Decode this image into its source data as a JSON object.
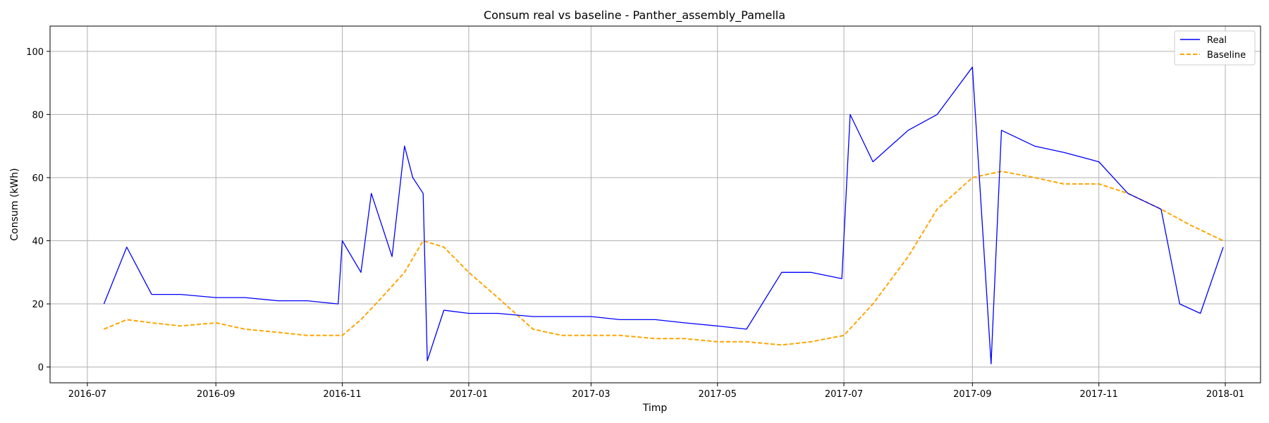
{
  "chart_data": {
    "type": "line",
    "title": "Consum real vs baseline - Panther_assembly_Pamella",
    "xlabel": "Timp",
    "ylabel": "Consum (kWh)",
    "xlim": [
      "2016-06-13",
      "2018-01-18"
    ],
    "ylim": [
      -5,
      108
    ],
    "x_ticks": [
      "2016-07-01",
      "2016-09-01",
      "2016-11-01",
      "2017-01-01",
      "2017-03-01",
      "2017-05-01",
      "2017-07-01",
      "2017-09-01",
      "2017-11-01",
      "2018-01-01"
    ],
    "x_tick_labels": [
      "2016-07",
      "2016-09",
      "2016-11",
      "2017-01",
      "2017-03",
      "2017-05",
      "2017-07",
      "2017-09",
      "2017-11",
      "2018-01"
    ],
    "y_ticks": [
      0,
      20,
      40,
      60,
      80,
      100
    ],
    "y_tick_labels": [
      "0",
      "20",
      "40",
      "60",
      "80",
      "100"
    ],
    "grid": true,
    "legend_position": "top-right",
    "series": [
      {
        "name": "Real",
        "color": "#0000ff",
        "style": "solid",
        "x": [
          "2016-07-09",
          "2016-07-20",
          "2016-08-01",
          "2016-08-15",
          "2016-09-01",
          "2016-09-15",
          "2016-10-01",
          "2016-10-15",
          "2016-10-30",
          "2016-11-01",
          "2016-11-10",
          "2016-11-15",
          "2016-11-20",
          "2016-11-25",
          "2016-12-01",
          "2016-12-05",
          "2016-12-10",
          "2016-12-12",
          "2016-12-20",
          "2017-01-01",
          "2017-01-15",
          "2017-02-01",
          "2017-02-15",
          "2017-03-01",
          "2017-03-15",
          "2017-04-01",
          "2017-04-15",
          "2017-05-01",
          "2017-05-15",
          "2017-06-01",
          "2017-06-15",
          "2017-06-30",
          "2017-07-04",
          "2017-07-15",
          "2017-08-01",
          "2017-08-15",
          "2017-09-01",
          "2017-09-10",
          "2017-09-15",
          "2017-10-01",
          "2017-10-15",
          "2017-11-01",
          "2017-11-15",
          "2017-12-01",
          "2017-12-10",
          "2017-12-20",
          "2017-12-31"
        ],
        "y": [
          20,
          38,
          23,
          23,
          22,
          22,
          21,
          21,
          20,
          40,
          30,
          55,
          45,
          35,
          70,
          60,
          55,
          2,
          18,
          17,
          17,
          16,
          16,
          16,
          15,
          15,
          14,
          13,
          12,
          30,
          30,
          28,
          80,
          65,
          75,
          80,
          95,
          1,
          75,
          70,
          68,
          65,
          55,
          50,
          20,
          17,
          38
        ]
      },
      {
        "name": "Baseline",
        "color": "#ffa500",
        "style": "dashed",
        "x": [
          "2016-07-09",
          "2016-07-20",
          "2016-08-01",
          "2016-08-15",
          "2016-09-01",
          "2016-09-15",
          "2016-10-01",
          "2016-10-15",
          "2016-11-01",
          "2016-11-10",
          "2016-11-20",
          "2016-12-01",
          "2016-12-10",
          "2016-12-20",
          "2017-01-01",
          "2017-01-15",
          "2017-02-01",
          "2017-02-15",
          "2017-03-01",
          "2017-03-15",
          "2017-04-01",
          "2017-04-15",
          "2017-05-01",
          "2017-05-15",
          "2017-06-01",
          "2017-06-15",
          "2017-07-01",
          "2017-07-15",
          "2017-08-01",
          "2017-08-15",
          "2017-09-01",
          "2017-09-15",
          "2017-10-01",
          "2017-10-15",
          "2017-11-01",
          "2017-11-15",
          "2017-12-01",
          "2017-12-15",
          "2017-12-31"
        ],
        "y": [
          12,
          15,
          14,
          13,
          14,
          12,
          11,
          10,
          10,
          15,
          22,
          30,
          40,
          38,
          30,
          22,
          12,
          10,
          10,
          10,
          9,
          9,
          8,
          8,
          7,
          8,
          10,
          20,
          35,
          50,
          60,
          62,
          60,
          58,
          58,
          55,
          50,
          45,
          40
        ]
      }
    ]
  }
}
